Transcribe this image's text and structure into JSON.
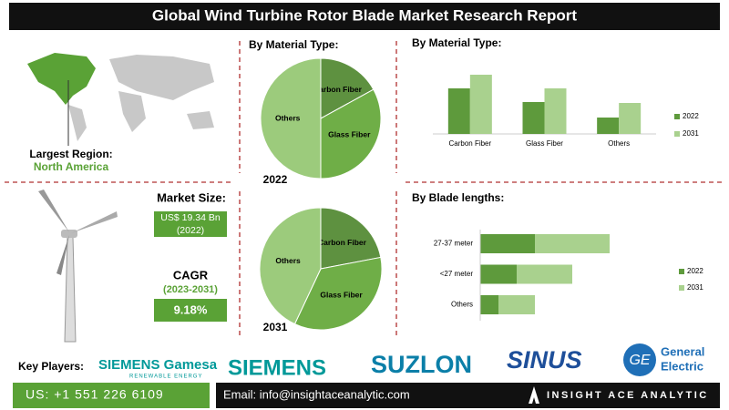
{
  "header": {
    "title": "Global Wind Turbine Rotor Blade Market Research Report"
  },
  "region": {
    "label": "Largest Region:",
    "value": "North America"
  },
  "market_size": {
    "label": "Market Size:",
    "value": "US$ 19.34 Bn",
    "year": "(2022)"
  },
  "cagr": {
    "label": "CAGR",
    "period": "(2023-2031)",
    "value": "9.18%"
  },
  "key_players": {
    "label": "Key Players:",
    "logos": [
      "SIEMENS Gamesa",
      "RENEWABLE ENERGY",
      "SIEMENS",
      "SUZLON",
      "SINUS",
      "General",
      "Electric"
    ]
  },
  "footer": {
    "phone": "US: +1 551 226 6109",
    "email": "Email: info@insightaceanalytic.com",
    "brand": "INSIGHT ACE ANALYTIC"
  },
  "chart_data": [
    {
      "type": "pie",
      "title": "By Material Type:",
      "subtitle": "2022",
      "categories": [
        "Carbon Fiber",
        "Glass Fiber",
        "Others"
      ],
      "values": [
        17,
        33,
        50
      ],
      "colors": [
        "#5e9140",
        "#6fae47",
        "#9ccb7c"
      ]
    },
    {
      "type": "pie",
      "subtitle": "2031",
      "categories": [
        "Carbon Fiber",
        "Glass Fiber",
        "Others"
      ],
      "values": [
        22,
        35,
        43
      ],
      "colors": [
        "#5e9140",
        "#6fae47",
        "#9ccb7c"
      ]
    },
    {
      "type": "bar",
      "title": "By Material Type:",
      "categories": [
        "Carbon Fiber",
        "Glass Fiber",
        "Others"
      ],
      "ylim": [
        0,
        70
      ],
      "series": [
        {
          "name": "2022",
          "color": "#5e9a3c",
          "values": [
            50,
            35,
            18
          ]
        },
        {
          "name": "2031",
          "color": "#a9d18e",
          "values": [
            65,
            50,
            34
          ]
        }
      ]
    },
    {
      "type": "hbar",
      "title": "By Blade lengths:",
      "categories": [
        "27-37 meter",
        "<27 meter",
        "Others"
      ],
      "xlim": [
        0,
        160
      ],
      "series": [
        {
          "name": "2022",
          "color": "#5e9a3c",
          "values": [
            60,
            40,
            20
          ]
        },
        {
          "name": "2031",
          "color": "#a9d18e",
          "values": [
            82,
            61,
            40
          ]
        }
      ]
    }
  ]
}
